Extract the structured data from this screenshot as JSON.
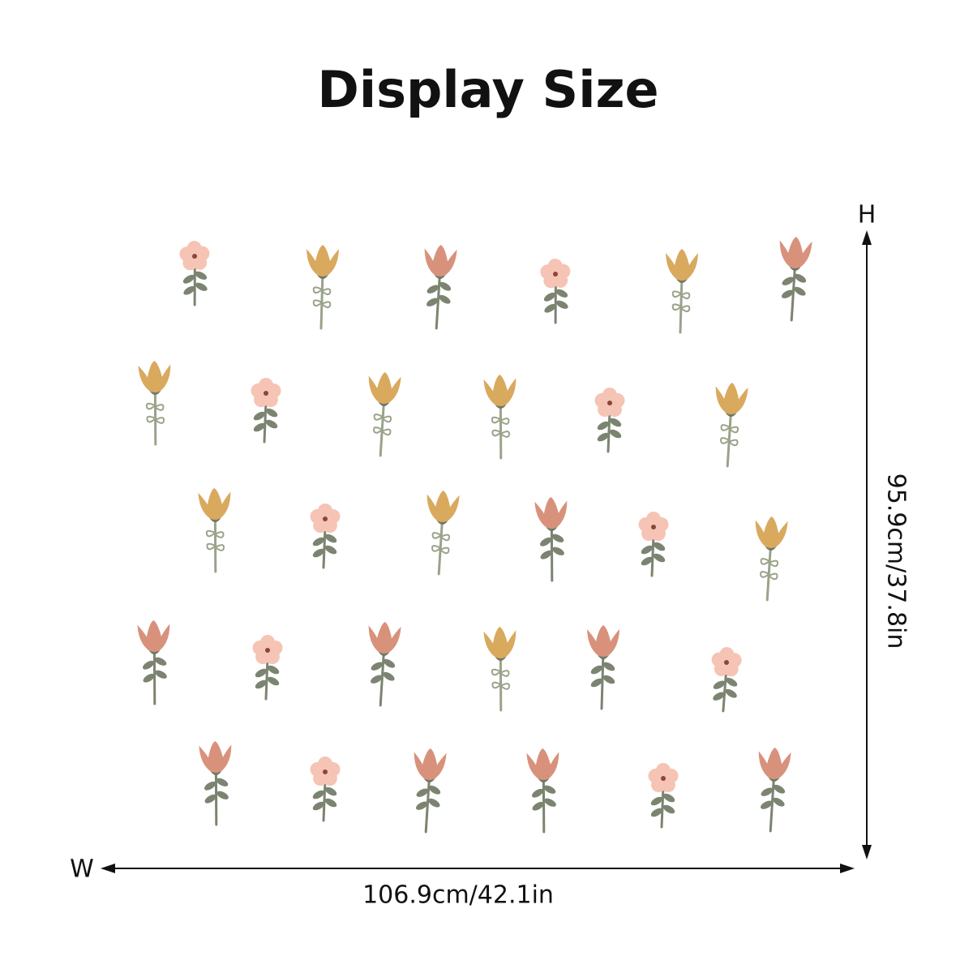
{
  "header": {
    "title": "Display Size"
  },
  "dimensions": {
    "height_axis_label": "H",
    "width_axis_label": "W",
    "width": "106.9cm/42.1in",
    "height": "95.9cm/37.8in"
  }
}
